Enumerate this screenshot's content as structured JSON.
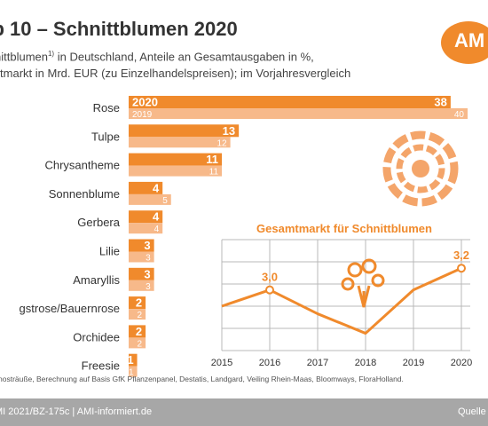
{
  "header": {
    "title": "op 10 – Schnittblumen 2020",
    "subtitle_line1_a": "nittblumen",
    "subtitle_sup": "1)",
    "subtitle_line1_b": " in Deutschland, Anteile an Gesamtausgaben in %,",
    "subtitle_line2": "amtmarkt in Mrd. EUR (zu Einzelhandelspreisen); im Vorjahresvergleich",
    "logo_text": "AM"
  },
  "colors": {
    "series_2020": "#f08a2c",
    "series_2019": "#f7b98a",
    "line": "#f08a2c",
    "grid": "#b8b8b8",
    "footer_bg": "#a7a7a7"
  },
  "chart_data": [
    {
      "type": "bar",
      "orientation": "horizontal",
      "categories": [
        "Rose",
        "Tulpe",
        "Chrysantheme",
        "Sonnenblume",
        "Gerbera",
        "Lilie",
        "Amaryllis",
        "gstrose/Bauernrose",
        "Orchidee",
        "Freesie"
      ],
      "series": [
        {
          "name": "2020",
          "values": [
            38,
            13,
            11,
            4,
            4,
            3,
            3,
            2,
            2,
            1
          ]
        },
        {
          "name": "2019",
          "values": [
            40,
            12,
            11,
            5,
            4,
            3,
            3,
            2,
            2,
            1
          ]
        }
      ],
      "xlim": [
        0,
        40
      ]
    },
    {
      "type": "line",
      "title": "Gesamtmarkt für Schnittblumen",
      "x": [
        2015,
        2016,
        2017,
        2018,
        2019,
        2020
      ],
      "series": [
        {
          "values": [
            2.85,
            3.0,
            2.78,
            2.6,
            3.0,
            3.2
          ]
        }
      ],
      "point_labels": [
        {
          "x": 2016,
          "text": "3,0"
        },
        {
          "x": 2020,
          "text": "3,2"
        }
      ],
      "grid": true,
      "xlabel": "",
      "ylabel": ""
    }
  ],
  "footnote": "nosträuße, Berechnung auf Basis GfK Pflanzenpanel, Destatis, Landgard, Veiling Rhein-Maas, Bloomways, FloraHolland.",
  "footer": {
    "left": "MI 2021/BZ-175c | AMI-informiert.de",
    "right": "Quelle"
  }
}
